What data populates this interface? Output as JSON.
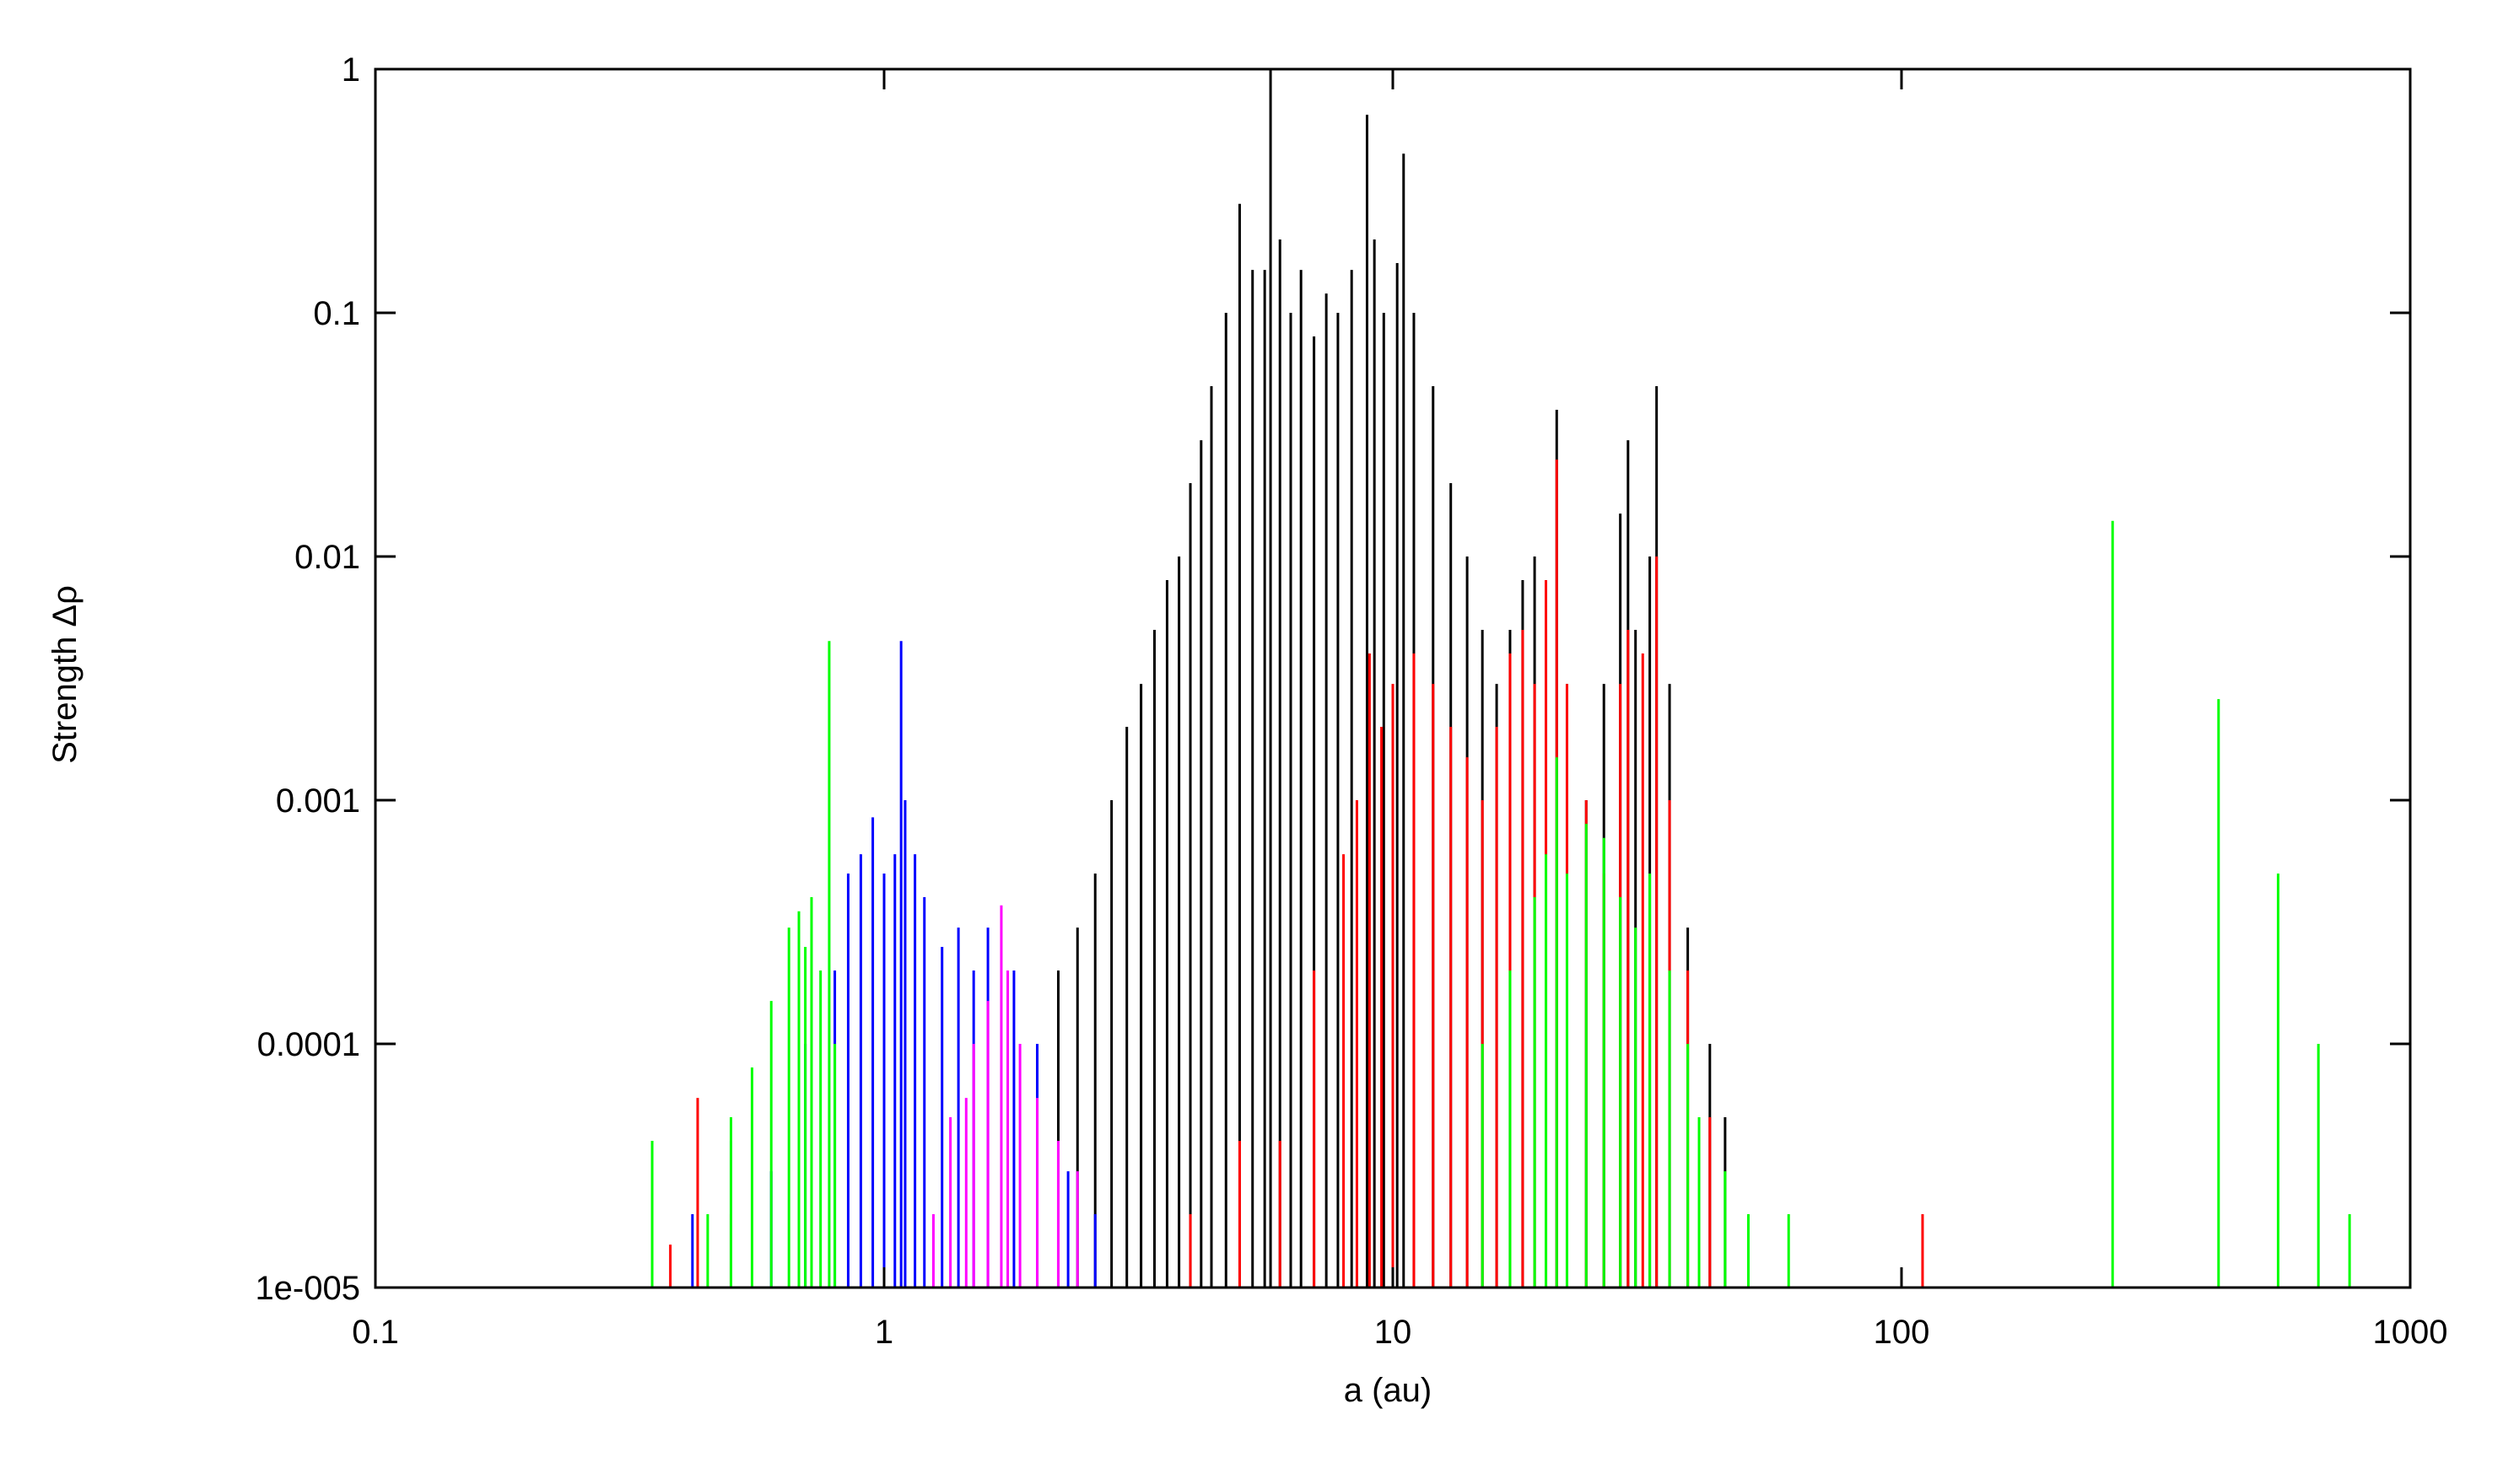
{
  "chart_data": {
    "type": "impulse",
    "x_label": "a (au)",
    "y_label": "Strength Δρ",
    "xlog": true,
    "ylog": true,
    "xlim": [
      0.1,
      1000
    ],
    "xticks": [
      0.1,
      1,
      10,
      100,
      1000
    ],
    "ylim": [
      1e-05,
      1
    ],
    "yticks": [
      {
        "value": 1e-05,
        "label": "1e-005"
      },
      0.0001,
      0.001,
      0.01,
      0.1,
      1
    ],
    "series": [
      {
        "color": "#000000",
        "x": [
          2.0,
          2.2,
          2.4,
          2.6,
          2.8,
          3.0,
          3.2,
          3.4,
          3.6,
          3.8,
          4.0,
          4.2,
          4.4,
          4.7,
          5.0,
          5.3,
          5.6,
          5.75,
          6.0,
          6.3,
          6.6,
          7.0,
          7.4,
          7.8,
          8.3,
          8.9,
          9.2,
          9.6,
          10.2,
          10.5,
          11,
          12,
          13,
          14,
          15,
          16,
          17,
          18,
          19,
          20,
          21,
          22,
          24,
          26,
          28,
          29,
          30,
          32,
          33,
          35,
          38,
          42,
          45
        ],
        "values": [
          0.0001,
          0.0002,
          0.0003,
          0.0005,
          0.001,
          0.002,
          0.003,
          0.005,
          0.008,
          0.01,
          0.02,
          0.03,
          0.05,
          0.1,
          0.28,
          0.15,
          0.15,
          1.0,
          0.2,
          0.1,
          0.15,
          0.08,
          0.12,
          0.1,
          0.15,
          0.65,
          0.2,
          0.1,
          0.16,
          0.45,
          0.1,
          0.05,
          0.02,
          0.01,
          0.005,
          0.003,
          0.005,
          0.008,
          0.01,
          0.005,
          0.04,
          0.003,
          0.001,
          0.003,
          0.015,
          0.03,
          0.005,
          0.01,
          0.05,
          0.003,
          0.0003,
          0.0001,
          5e-05
        ]
      },
      {
        "color": "#0000ff",
        "x": [
          0.42,
          0.5,
          0.6,
          0.7,
          0.8,
          0.85,
          0.9,
          0.95,
          1.0,
          1.05,
          1.08,
          1.1,
          1.15,
          1.2,
          1.3,
          1.4,
          1.5,
          1.6,
          1.8,
          2.0,
          2.3,
          2.6
        ],
        "values": [
          2e-05,
          4e-05,
          3e-05,
          0.0001,
          0.0002,
          0.0005,
          0.0006,
          0.00085,
          0.0005,
          0.0006,
          0.0045,
          0.001,
          0.0006,
          0.0004,
          0.00025,
          0.0003,
          0.0002,
          0.0003,
          0.0002,
          0.0001,
          3e-05,
          2e-05
        ]
      },
      {
        "color": "#ff00ff",
        "x": [
          1.25,
          1.35,
          1.45,
          1.5,
          1.6,
          1.7,
          1.75,
          1.85,
          2.0,
          2.2,
          2.4
        ],
        "values": [
          2e-05,
          5e-05,
          6e-05,
          0.0001,
          0.00015,
          0.00037,
          0.0002,
          0.0001,
          6e-05,
          4e-05,
          3e-05
        ]
      },
      {
        "color": "#ff0000",
        "x": [
          0.38,
          0.43,
          0.5,
          4,
          5,
          6,
          7,
          8,
          8.5,
          9,
          9.5,
          10,
          11,
          12,
          13,
          14,
          15,
          16,
          17,
          18,
          19,
          20,
          21,
          22,
          24,
          26,
          28,
          29,
          31,
          33,
          35,
          38,
          42,
          110
        ],
        "values": [
          1.5e-05,
          6e-05,
          2e-05,
          2e-05,
          4e-05,
          4e-05,
          0.0002,
          0.0006,
          0.001,
          0.004,
          0.002,
          0.003,
          0.004,
          0.003,
          0.002,
          0.0015,
          0.001,
          0.002,
          0.004,
          0.005,
          0.003,
          0.008,
          0.025,
          0.003,
          0.001,
          0.0005,
          0.003,
          0.005,
          0.004,
          0.01,
          0.001,
          0.0002,
          5e-05,
          2e-05
        ]
      },
      {
        "color": "#00ff00",
        "x": [
          0.35,
          0.45,
          0.5,
          0.55,
          0.6,
          0.65,
          0.68,
          0.7,
          0.72,
          0.75,
          0.78,
          0.8,
          15,
          17,
          19,
          20,
          21,
          22,
          24,
          26,
          28,
          30,
          32,
          35,
          38,
          40,
          45,
          50,
          60,
          260,
          420,
          550,
          660,
          760
        ],
        "values": [
          4e-05,
          2e-05,
          5e-05,
          8e-05,
          0.00015,
          0.0003,
          0.00035,
          0.00025,
          0.0004,
          0.0002,
          0.0045,
          0.0001,
          0.0001,
          0.0002,
          0.0004,
          0.0006,
          0.0015,
          0.0005,
          0.0008,
          0.0007,
          0.0004,
          0.0003,
          0.0005,
          0.0002,
          0.0001,
          5e-05,
          3e-05,
          2e-05,
          2e-05,
          0.014,
          0.0026,
          0.0005,
          0.0001,
          2e-05
        ]
      }
    ]
  }
}
